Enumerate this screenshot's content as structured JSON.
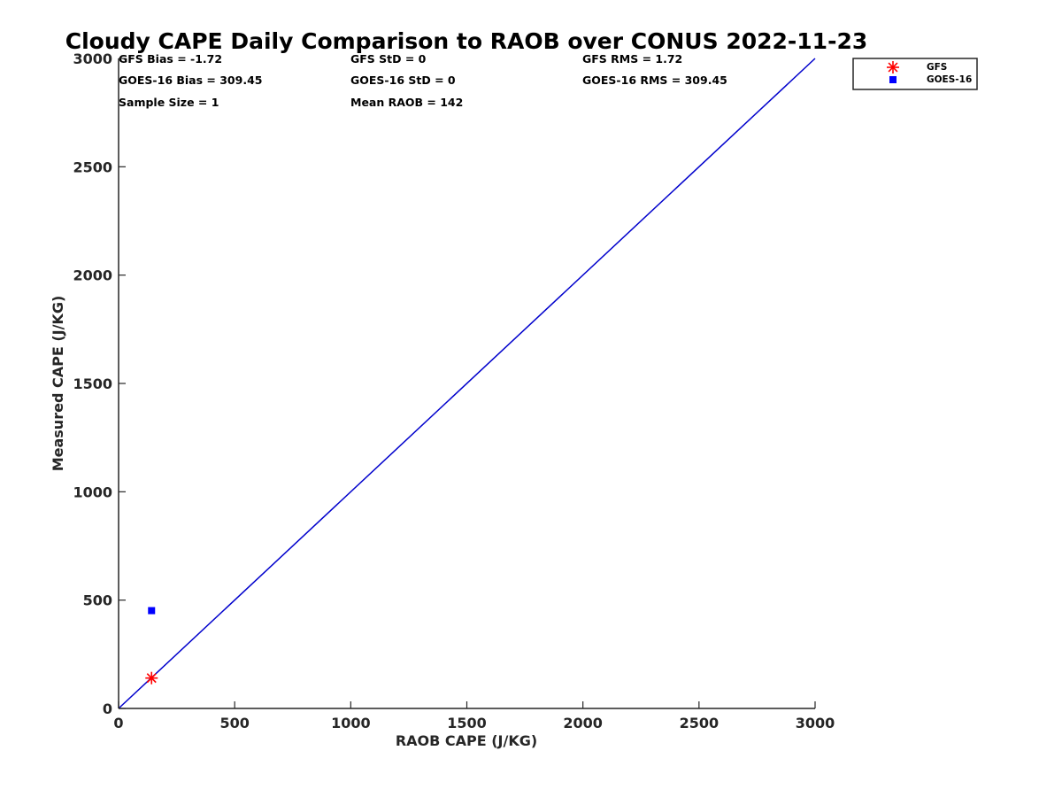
{
  "chart_data": {
    "type": "scatter",
    "title": "Cloudy CAPE Daily Comparison to RAOB over CONUS 2022-11-23",
    "xlabel": "RAOB CAPE (J/KG)",
    "ylabel": "Measured CAPE (J/KG)",
    "xlim": [
      0,
      3000
    ],
    "ylim": [
      0,
      3000
    ],
    "x_ticks": [
      0,
      500,
      1000,
      1500,
      2000,
      2500,
      3000
    ],
    "y_ticks": [
      0,
      500,
      1000,
      1500,
      2000,
      2500,
      3000
    ],
    "x_tick_labels": [
      "0",
      "500",
      "1000",
      "1500",
      "2000",
      "2500",
      "3000"
    ],
    "y_tick_labels": [
      "0",
      "500",
      "1000",
      "1500",
      "2000",
      "2500",
      "3000"
    ],
    "grid": false,
    "legend_position": "outside-top-right",
    "series": [
      {
        "name": "GFS",
        "marker": "asterisk",
        "color": "#ff0000",
        "points": [
          {
            "x": 142,
            "y": 140.28
          }
        ]
      },
      {
        "name": "GOES-16",
        "marker": "square",
        "color": "#0000ff",
        "points": [
          {
            "x": 142,
            "y": 451.45
          }
        ]
      }
    ],
    "reference_line": {
      "from": [
        0,
        0
      ],
      "to": [
        3000,
        3000
      ],
      "color": "#0000cc"
    },
    "annotations": [
      "GFS Bias = -1.72",
      "GFS StD = 0",
      "GFS RMS = 1.72",
      "GOES-16 Bias = 309.45",
      "GOES-16 StD = 0",
      "GOES-16 RMS = 309.45",
      "Sample Size = 1",
      "Mean RAOB = 142"
    ]
  }
}
